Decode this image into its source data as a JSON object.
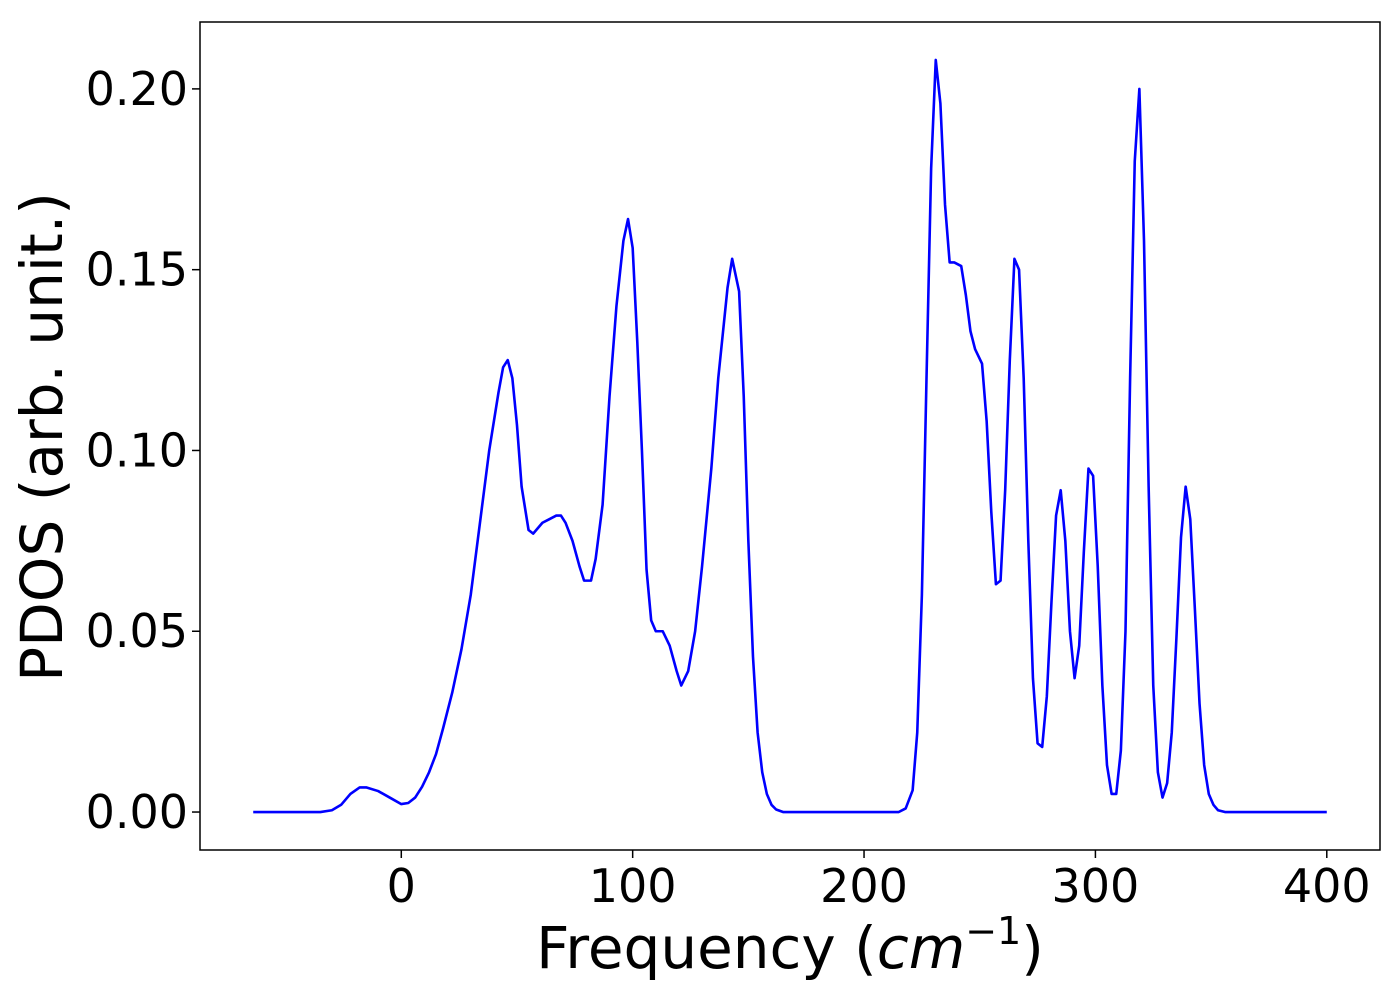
{
  "chart_data": {
    "type": "line",
    "title": "",
    "xlabel_main": "Frequency (",
    "xlabel_var": "cm",
    "xlabel_sup": "−1",
    "xlabel_close": ")",
    "ylabel": "PDOS (arb. unit.)",
    "xlim": [
      -87,
      423
    ],
    "ylim": [
      -0.0105,
      0.2185
    ],
    "grid": false,
    "legend": "none",
    "line_color": "#0000ff",
    "x_ticks": [
      {
        "value": 0,
        "label": "0"
      },
      {
        "value": 100,
        "label": "100"
      },
      {
        "value": 200,
        "label": "200"
      },
      {
        "value": 300,
        "label": "300"
      },
      {
        "value": 400,
        "label": "400"
      }
    ],
    "y_ticks": [
      {
        "value": 0.0,
        "label": "0.00"
      },
      {
        "value": 0.05,
        "label": "0.05"
      },
      {
        "value": 0.1,
        "label": "0.10"
      },
      {
        "value": 0.15,
        "label": "0.15"
      },
      {
        "value": 0.2,
        "label": "0.20"
      }
    ],
    "series": [
      {
        "color": "#0000ff",
        "points": [
          [
            -64,
            0.0
          ],
          [
            -50,
            0.0
          ],
          [
            -35,
            0.0
          ],
          [
            -30,
            0.0005
          ],
          [
            -26,
            0.002
          ],
          [
            -22,
            0.005
          ],
          [
            -18,
            0.0068
          ],
          [
            -15,
            0.0068
          ],
          [
            -10,
            0.0058
          ],
          [
            -5,
            0.004
          ],
          [
            0,
            0.0022
          ],
          [
            3,
            0.0025
          ],
          [
            6,
            0.004
          ],
          [
            9,
            0.007
          ],
          [
            12,
            0.011
          ],
          [
            15,
            0.016
          ],
          [
            18,
            0.023
          ],
          [
            22,
            0.033
          ],
          [
            26,
            0.045
          ],
          [
            30,
            0.06
          ],
          [
            34,
            0.08
          ],
          [
            38,
            0.1
          ],
          [
            42,
            0.116
          ],
          [
            44,
            0.123
          ],
          [
            46,
            0.125
          ],
          [
            48,
            0.12
          ],
          [
            50,
            0.107
          ],
          [
            52,
            0.09
          ],
          [
            55,
            0.078
          ],
          [
            57,
            0.077
          ],
          [
            61,
            0.08
          ],
          [
            64,
            0.081
          ],
          [
            67,
            0.082
          ],
          [
            69,
            0.082
          ],
          [
            71,
            0.08
          ],
          [
            74,
            0.075
          ],
          [
            77,
            0.068
          ],
          [
            79,
            0.064
          ],
          [
            82,
            0.064
          ],
          [
            84,
            0.07
          ],
          [
            87,
            0.085
          ],
          [
            90,
            0.115
          ],
          [
            93,
            0.14
          ],
          [
            96,
            0.158
          ],
          [
            98,
            0.164
          ],
          [
            100,
            0.156
          ],
          [
            102,
            0.13
          ],
          [
            104,
            0.1
          ],
          [
            106,
            0.067
          ],
          [
            108,
            0.053
          ],
          [
            110,
            0.05
          ],
          [
            113,
            0.05
          ],
          [
            116,
            0.046
          ],
          [
            119,
            0.039
          ],
          [
            121,
            0.035
          ],
          [
            124,
            0.039
          ],
          [
            127,
            0.05
          ],
          [
            130,
            0.068
          ],
          [
            134,
            0.095
          ],
          [
            137,
            0.12
          ],
          [
            141,
            0.145
          ],
          [
            143,
            0.153
          ],
          [
            146,
            0.144
          ],
          [
            148,
            0.115
          ],
          [
            150,
            0.075
          ],
          [
            152,
            0.043
          ],
          [
            154,
            0.022
          ],
          [
            156,
            0.011
          ],
          [
            158,
            0.005
          ],
          [
            160,
            0.002
          ],
          [
            162,
            0.0007
          ],
          [
            165,
            0.0
          ],
          [
            200,
            0.0
          ],
          [
            215,
            0.0
          ],
          [
            218,
            0.001
          ],
          [
            221,
            0.006
          ],
          [
            223,
            0.022
          ],
          [
            225,
            0.06
          ],
          [
            227,
            0.12
          ],
          [
            229,
            0.178
          ],
          [
            231,
            0.208
          ],
          [
            233,
            0.196
          ],
          [
            235,
            0.168
          ],
          [
            237,
            0.152
          ],
          [
            239,
            0.152
          ],
          [
            242,
            0.151
          ],
          [
            244,
            0.143
          ],
          [
            246,
            0.133
          ],
          [
            248,
            0.128
          ],
          [
            251,
            0.124
          ],
          [
            253,
            0.108
          ],
          [
            255,
            0.083
          ],
          [
            257,
            0.063
          ],
          [
            259,
            0.064
          ],
          [
            261,
            0.089
          ],
          [
            263,
            0.125
          ],
          [
            265,
            0.153
          ],
          [
            267,
            0.15
          ],
          [
            269,
            0.12
          ],
          [
            271,
            0.075
          ],
          [
            273,
            0.037
          ],
          [
            275,
            0.019
          ],
          [
            277,
            0.018
          ],
          [
            279,
            0.032
          ],
          [
            281,
            0.058
          ],
          [
            283,
            0.082
          ],
          [
            285,
            0.089
          ],
          [
            287,
            0.075
          ],
          [
            289,
            0.05
          ],
          [
            291,
            0.037
          ],
          [
            293,
            0.046
          ],
          [
            295,
            0.072
          ],
          [
            297,
            0.095
          ],
          [
            299,
            0.093
          ],
          [
            301,
            0.068
          ],
          [
            303,
            0.035
          ],
          [
            305,
            0.013
          ],
          [
            307,
            0.005
          ],
          [
            309,
            0.005
          ],
          [
            311,
            0.017
          ],
          [
            313,
            0.05
          ],
          [
            315,
            0.12
          ],
          [
            317,
            0.18
          ],
          [
            319,
            0.2
          ],
          [
            321,
            0.158
          ],
          [
            323,
            0.09
          ],
          [
            325,
            0.035
          ],
          [
            327,
            0.011
          ],
          [
            329,
            0.004
          ],
          [
            331,
            0.008
          ],
          [
            333,
            0.022
          ],
          [
            335,
            0.048
          ],
          [
            337,
            0.076
          ],
          [
            339,
            0.09
          ],
          [
            341,
            0.081
          ],
          [
            343,
            0.056
          ],
          [
            345,
            0.03
          ],
          [
            347,
            0.013
          ],
          [
            349,
            0.005
          ],
          [
            351,
            0.002
          ],
          [
            353,
            0.0005
          ],
          [
            356,
            0.0
          ],
          [
            370,
            0.0
          ],
          [
            400,
            0.0
          ]
        ]
      }
    ]
  }
}
